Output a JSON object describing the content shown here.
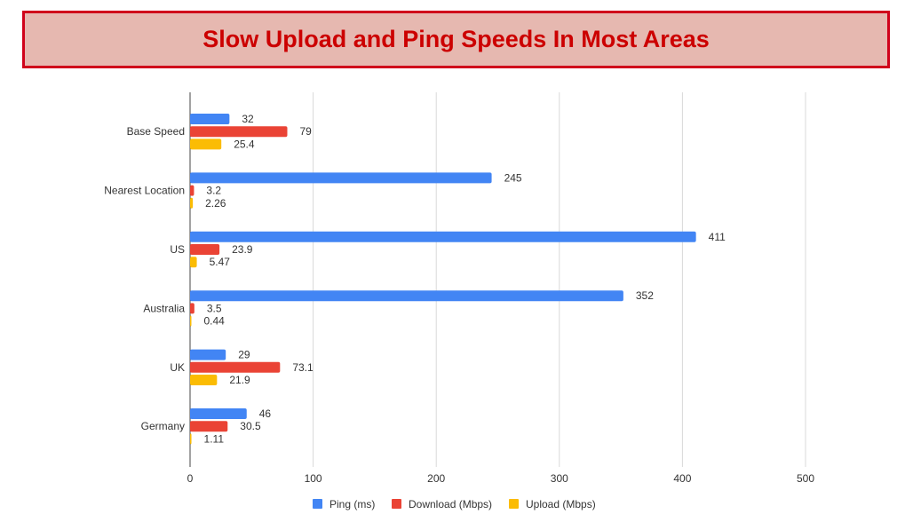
{
  "title": "Slow Upload and Ping Speeds In Most Areas",
  "colors": {
    "banner_bg": "#e6b8b0",
    "banner_border": "#d0021b",
    "title_text": "#cc0000",
    "gridline": "#d9d9d9",
    "axis_text": "#333333"
  },
  "chart_data": {
    "type": "bar",
    "orientation": "horizontal",
    "categories": [
      "Base Speed",
      "Nearest Location",
      "US",
      "Australia",
      "UK",
      "Germany"
    ],
    "series": [
      {
        "name": "Ping (ms)",
        "color": "#4285f4",
        "values": [
          32,
          245,
          411,
          352,
          29,
          46
        ],
        "labels": [
          "32",
          "245",
          "411",
          "352",
          "29",
          "46"
        ]
      },
      {
        "name": "Download (Mbps)",
        "color": "#ea4335",
        "values": [
          79,
          3.2,
          23.9,
          3.5,
          73.1,
          30.5
        ],
        "labels": [
          "79",
          "3.2",
          "23.9",
          "3.5",
          "73.1",
          "30.5"
        ]
      },
      {
        "name": "Upload (Mbps)",
        "color": "#fbbc04",
        "values": [
          25.4,
          2.26,
          5.47,
          0.44,
          21.9,
          1.11
        ],
        "labels": [
          "25.4",
          "2.26",
          "5.47",
          "0.44",
          "21.9",
          "1.11"
        ]
      }
    ],
    "xlim": [
      0,
      500
    ],
    "xticks": [
      0,
      100,
      200,
      300,
      400,
      500
    ],
    "xtick_labels": [
      "0",
      "100",
      "200",
      "300",
      "400",
      "500"
    ],
    "grid": true,
    "legend_position": "bottom"
  }
}
